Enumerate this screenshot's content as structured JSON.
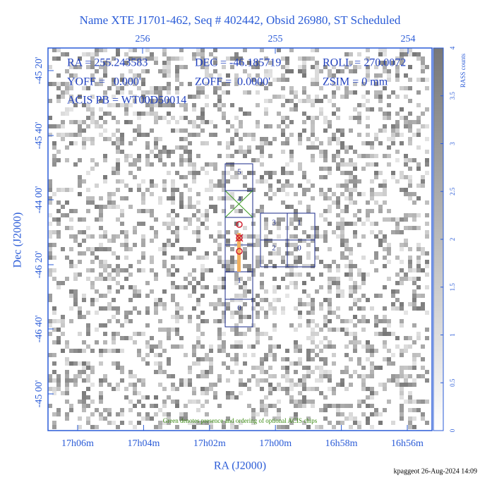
{
  "header": {
    "title": "Name XTE J1701-462, Seq # 402442, Obsid 26980, ST Scheduled"
  },
  "axes": {
    "top_ticks": [
      "256",
      "255",
      "254"
    ],
    "left_ticks": [
      "-45 20'",
      "-45 40'",
      "-44 00'",
      "-46 20'",
      "-46 40'",
      "-45 00'"
    ],
    "bottom_ticks": [
      "17h06m",
      "17h04m",
      "17h02m",
      "17h00m",
      "16h58m",
      "16h56m"
    ],
    "x_title": "RA (J2000)",
    "y_title": "Dec (J2000)"
  },
  "info": {
    "ra": "RA = 255.243583",
    "dec": "DEC = -46.185719",
    "roll": "ROLL = 270.0072",
    "yoff": "YOFF =   0.000'",
    "zoff": "ZOFF =  0.0000'",
    "zsim": "ZSIM = 0 mm",
    "acis_pb": "ACIS PB = WT00D50014"
  },
  "chips": {
    "s_array": [
      "5",
      "4",
      "1",
      "0"
    ],
    "i_array": [
      "3",
      "1",
      "2",
      "0"
    ]
  },
  "note": "Green denotes presence and ordering of optional ACIS chips",
  "colorbar": {
    "label": "RASS counts",
    "lim": [
      0,
      4
    ],
    "ticks": [
      0,
      0.5,
      1,
      1.5,
      2,
      2.5,
      3,
      3.5,
      4
    ]
  },
  "footer": "kpaggeot 26-Aug-2024 14:09"
}
